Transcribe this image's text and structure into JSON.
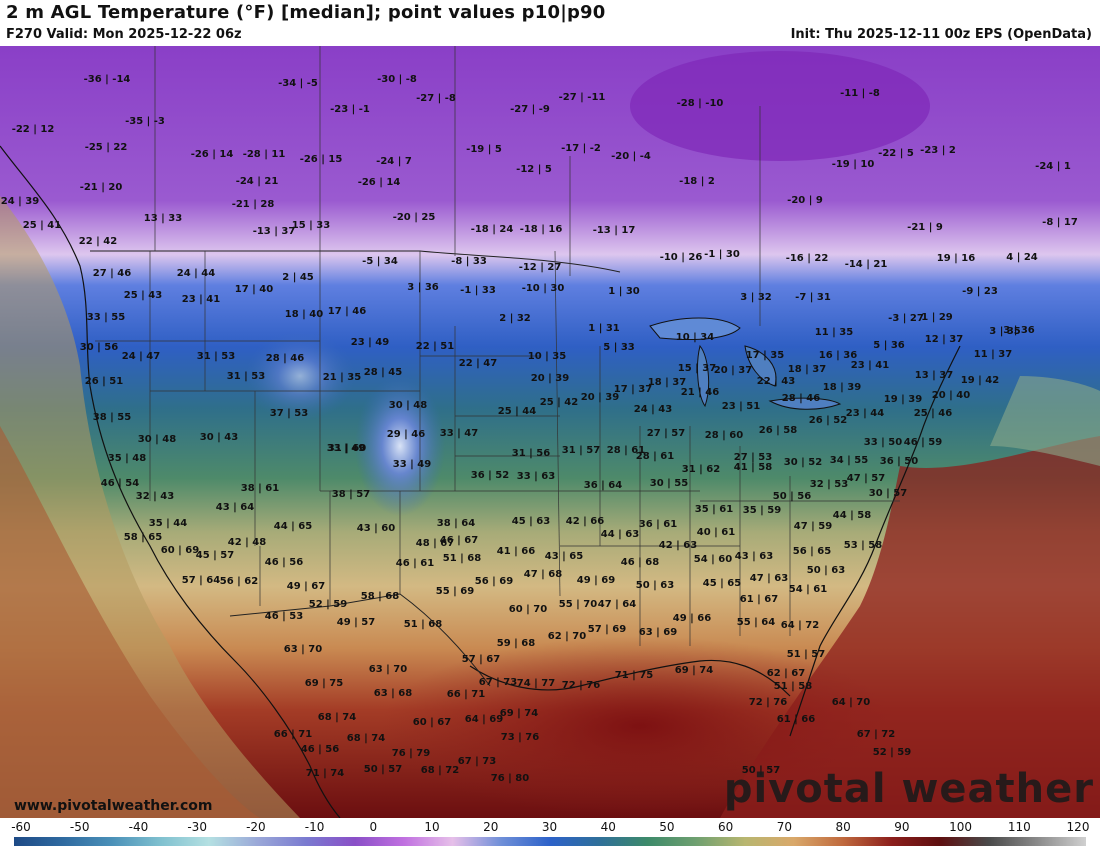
{
  "header": {
    "title": "2 m AGL Temperature (°F) [median]; point values p10|p90",
    "valid": "F270 Valid: Mon 2025-12-22 06z",
    "init": "Init: Thu 2025-12-11 00z EPS (OpenData)"
  },
  "footer": {
    "website": "www.pivotalweather.com",
    "brand": "pivotal weather"
  },
  "colorbar": {
    "ticks": [
      "-60",
      "-50",
      "-40",
      "-30",
      "-20",
      "-10",
      "0",
      "10",
      "20",
      "30",
      "40",
      "50",
      "60",
      "70",
      "80",
      "90",
      "100",
      "110",
      "120"
    ],
    "colors": [
      "#1e4a86",
      "#2f6aa0",
      "#4a90b8",
      "#7fc0cf",
      "#b4e0e2",
      "#9aa8d8",
      "#7a7ad0",
      "#8a4fc7",
      "#c070e0",
      "#e6bfe9",
      "#6f8fd8",
      "#2d62c9",
      "#2f6f9a",
      "#3d8a6a",
      "#6fa070",
      "#b8b670",
      "#d9a86a",
      "#c06a3e",
      "#8c1f1c",
      "#5e0f10",
      "#4a4a4a",
      "#8a8a8a",
      "#d0d0d0"
    ],
    "unit": "°F"
  },
  "colors": {
    "very_cold": "#8a3fc7",
    "cold": "#2d62c9",
    "cool": "#3d8a6a",
    "mild": "#c9b27a",
    "warm": "#c06a3e",
    "hot": "#7c1414",
    "ocean_north": "#6fa070"
  },
  "points": [
    {
      "t": "-36 | -14"
    },
    {
      "t": "-34 | -5"
    },
    {
      "t": "-30 | -8"
    },
    {
      "t": "-27 | -8"
    },
    {
      "t": "-27 | -11"
    },
    {
      "t": "-28 | -10"
    },
    {
      "t": "-22 | 12"
    },
    {
      "t": "-35 | -3"
    },
    {
      "t": "-23 | -1"
    },
    {
      "t": "-27 | -9"
    },
    {
      "t": "-11 | -8"
    },
    {
      "t": "-25 | 22"
    },
    {
      "t": "-26 | 14"
    },
    {
      "t": "-28 | 11"
    },
    {
      "t": "-26 | 15"
    },
    {
      "t": "-24 | 7"
    },
    {
      "t": "-19 | 5"
    },
    {
      "t": "-17 | -2"
    },
    {
      "t": "-20 | -4"
    },
    {
      "t": "-22 | 5"
    },
    {
      "t": "-23 | 2"
    },
    {
      "t": "-21 | 20"
    },
    {
      "t": "-24 | 21"
    },
    {
      "t": "-26 | 14"
    },
    {
      "t": "-12 | 5"
    },
    {
      "t": "-18 | 2"
    },
    {
      "t": "-19 | 10"
    },
    {
      "t": "-24 | 1"
    },
    {
      "t": "24 | 39"
    },
    {
      "t": "-21 | 28"
    },
    {
      "t": "-20 | 9"
    },
    {
      "t": "13 | 33"
    },
    {
      "t": "-20 | 25"
    },
    {
      "t": "-18 | 24"
    },
    {
      "t": "-18 | 16"
    },
    {
      "t": "-13 | 17"
    },
    {
      "t": "-21 | 9"
    },
    {
      "t": "-8 | 17"
    },
    {
      "t": "25 | 41"
    },
    {
      "t": "-13 | 37"
    },
    {
      "t": "15 | 33"
    },
    {
      "t": "22 | 42"
    },
    {
      "t": "-10 | 26"
    },
    {
      "t": "-1 | 30"
    },
    {
      "t": "-16 | 22"
    },
    {
      "t": "-14 | 21"
    },
    {
      "t": "19 | 16"
    },
    {
      "t": "4 | 24"
    },
    {
      "t": "27 | 46"
    },
    {
      "t": "24 | 44"
    },
    {
      "t": "-5 | 34"
    },
    {
      "t": "-8 | 33"
    },
    {
      "t": "-12 | 27"
    },
    {
      "t": "17 | 40"
    },
    {
      "t": "2 | 45"
    },
    {
      "t": "3 | 36"
    },
    {
      "t": "-1 | 33"
    },
    {
      "t": "-10 | 30"
    },
    {
      "t": "1 | 30"
    },
    {
      "t": "-9 | 23"
    },
    {
      "t": "25 | 43"
    },
    {
      "t": "23 | 41"
    },
    {
      "t": "3 | 32"
    },
    {
      "t": "-7 | 31"
    },
    {
      "t": "33 | 55"
    },
    {
      "t": "18 | 40"
    },
    {
      "t": "17 | 46"
    },
    {
      "t": "2 | 32"
    },
    {
      "t": "-3 | 27"
    },
    {
      "t": "1 | 29"
    },
    {
      "t": "3 | 36"
    },
    {
      "t": "1 | 31"
    },
    {
      "t": "11 | 35"
    },
    {
      "t": "3 | 35"
    },
    {
      "t": "30 | 56"
    },
    {
      "t": "23 | 49"
    },
    {
      "t": "22 | 51"
    },
    {
      "t": "10 | 34"
    },
    {
      "t": "5 | 36"
    },
    {
      "t": "12 | 37"
    },
    {
      "t": "24 | 47"
    },
    {
      "t": "31 | 53"
    },
    {
      "t": "28 | 46"
    },
    {
      "t": "5 | 33"
    },
    {
      "t": "16 | 36"
    },
    {
      "t": "11 | 37"
    },
    {
      "t": "22 | 47"
    },
    {
      "t": "10 | 35"
    },
    {
      "t": "17 | 35"
    },
    {
      "t": "23 | 41"
    },
    {
      "t": "26 | 51"
    },
    {
      "t": "31 | 53"
    },
    {
      "t": "21 | 35"
    },
    {
      "t": "28 | 45"
    },
    {
      "t": "15 | 37"
    },
    {
      "t": "20 | 37"
    },
    {
      "t": "18 | 37"
    },
    {
      "t": "13 | 37"
    },
    {
      "t": "20 | 39"
    },
    {
      "t": "17 | 37"
    },
    {
      "t": "18 | 37"
    },
    {
      "t": "22 | 43"
    },
    {
      "t": "18 | 39"
    },
    {
      "t": "19 | 42"
    },
    {
      "t": "38 | 55"
    },
    {
      "t": "37 | 53"
    },
    {
      "t": "30 | 48"
    },
    {
      "t": "25 | 44"
    },
    {
      "t": "25 | 42"
    },
    {
      "t": "20 | 39"
    },
    {
      "t": "21 | 46"
    },
    {
      "t": "28 | 46"
    },
    {
      "t": "19 | 39"
    },
    {
      "t": "20 | 40"
    },
    {
      "t": "24 | 43"
    },
    {
      "t": "23 | 51"
    },
    {
      "t": "26 | 52"
    },
    {
      "t": "23 | 44"
    },
    {
      "t": "25 | 46"
    },
    {
      "t": "30 | 48"
    },
    {
      "t": "30 | 43"
    },
    {
      "t": "29 | 46"
    },
    {
      "t": "33 | 47"
    },
    {
      "t": "27 | 57"
    },
    {
      "t": "28 | 60"
    },
    {
      "t": "26 | 58"
    },
    {
      "t": "33 | 49"
    },
    {
      "t": "31 | 56"
    },
    {
      "t": "31 | 57"
    },
    {
      "t": "28 | 61"
    },
    {
      "t": "30 | 52"
    },
    {
      "t": "33 | 50"
    },
    {
      "t": "46 | 59"
    },
    {
      "t": "35 | 48"
    },
    {
      "t": "33 | 49"
    },
    {
      "t": "31 | 60"
    },
    {
      "t": "28 | 61"
    },
    {
      "t": "27 | 53"
    },
    {
      "t": "34 | 55"
    },
    {
      "t": "36 | 50"
    },
    {
      "t": "36 | 52"
    },
    {
      "t": "33 | 63"
    },
    {
      "t": "31 | 62"
    },
    {
      "t": "41 | 58"
    },
    {
      "t": "46 | 54"
    },
    {
      "t": "38 | 61"
    },
    {
      "t": "36 | 64"
    },
    {
      "t": "30 | 55"
    },
    {
      "t": "32 | 53"
    },
    {
      "t": "47 | 57"
    },
    {
      "t": "32 | 43"
    },
    {
      "t": "38 | 57"
    },
    {
      "t": "30 | 57"
    },
    {
      "t": "50 | 56"
    },
    {
      "t": "43 | 64"
    },
    {
      "t": "38 | 64"
    },
    {
      "t": "35 | 61"
    },
    {
      "t": "35 | 59"
    },
    {
      "t": "44 | 58"
    },
    {
      "t": "35 | 44"
    },
    {
      "t": "44 | 65"
    },
    {
      "t": "45 | 63"
    },
    {
      "t": "42 | 66"
    },
    {
      "t": "36 | 61"
    },
    {
      "t": "47 | 59"
    },
    {
      "t": "58 | 65"
    },
    {
      "t": "42 | 48"
    },
    {
      "t": "43 | 60"
    },
    {
      "t": "46 | 67"
    },
    {
      "t": "44 | 63"
    },
    {
      "t": "40 | 61"
    },
    {
      "t": "53 | 58"
    },
    {
      "t": "60 | 69"
    },
    {
      "t": "45 | 57"
    },
    {
      "t": "48 | 67"
    },
    {
      "t": "41 | 66"
    },
    {
      "t": "42 | 63"
    },
    {
      "t": "43 | 63"
    },
    {
      "t": "56 | 65"
    },
    {
      "t": "46 | 56"
    },
    {
      "t": "46 | 61"
    },
    {
      "t": "51 | 68"
    },
    {
      "t": "43 | 65"
    },
    {
      "t": "54 | 60"
    },
    {
      "t": "57 | 64"
    },
    {
      "t": "56 | 62"
    },
    {
      "t": "49 | 67"
    },
    {
      "t": "56 | 69"
    },
    {
      "t": "47 | 68"
    },
    {
      "t": "46 | 68"
    },
    {
      "t": "45 | 65"
    },
    {
      "t": "47 | 63"
    },
    {
      "t": "50 | 63"
    },
    {
      "t": "55 | 69"
    },
    {
      "t": "49 | 69"
    },
    {
      "t": "50 | 63"
    },
    {
      "t": "54 | 61"
    },
    {
      "t": "52 | 59"
    },
    {
      "t": "58 | 68"
    },
    {
      "t": "60 | 70"
    },
    {
      "t": "55 | 70"
    },
    {
      "t": "47 | 64"
    },
    {
      "t": "61 | 67"
    },
    {
      "t": "46 | 53"
    },
    {
      "t": "49 | 57"
    },
    {
      "t": "51 | 68"
    },
    {
      "t": "49 | 66"
    },
    {
      "t": "55 | 64"
    },
    {
      "t": "64 | 72"
    },
    {
      "t": "62 | 70"
    },
    {
      "t": "57 | 69"
    },
    {
      "t": "63 | 69"
    },
    {
      "t": "63 | 70"
    },
    {
      "t": "57 | 67"
    },
    {
      "t": "51 | 57"
    },
    {
      "t": "63 | 70"
    },
    {
      "t": "59 | 68"
    },
    {
      "t": "62 | 67"
    },
    {
      "t": "69 | 75"
    },
    {
      "t": "67 | 73"
    },
    {
      "t": "74 | 77"
    },
    {
      "t": "72 | 76"
    },
    {
      "t": "71 | 75"
    },
    {
      "t": "69 | 74"
    },
    {
      "t": "51 | 58"
    },
    {
      "t": "63 | 68"
    },
    {
      "t": "66 | 71"
    },
    {
      "t": "72 | 76"
    },
    {
      "t": "64 | 70"
    },
    {
      "t": "68 | 74"
    },
    {
      "t": "69 | 74"
    },
    {
      "t": "61 | 66"
    },
    {
      "t": "60 | 67"
    },
    {
      "t": "64 | 69"
    },
    {
      "t": "66 | 71"
    },
    {
      "t": "68 | 74"
    },
    {
      "t": "73 | 76"
    },
    {
      "t": "67 | 72"
    },
    {
      "t": "46 | 56"
    },
    {
      "t": "76 | 79"
    },
    {
      "t": "52 | 59"
    },
    {
      "t": "67 | 73"
    },
    {
      "t": "71 | 74"
    },
    {
      "t": "50 | 57"
    },
    {
      "t": "68 | 72"
    },
    {
      "t": "76 | 80"
    },
    {
      "t": "50 | 57"
    }
  ]
}
